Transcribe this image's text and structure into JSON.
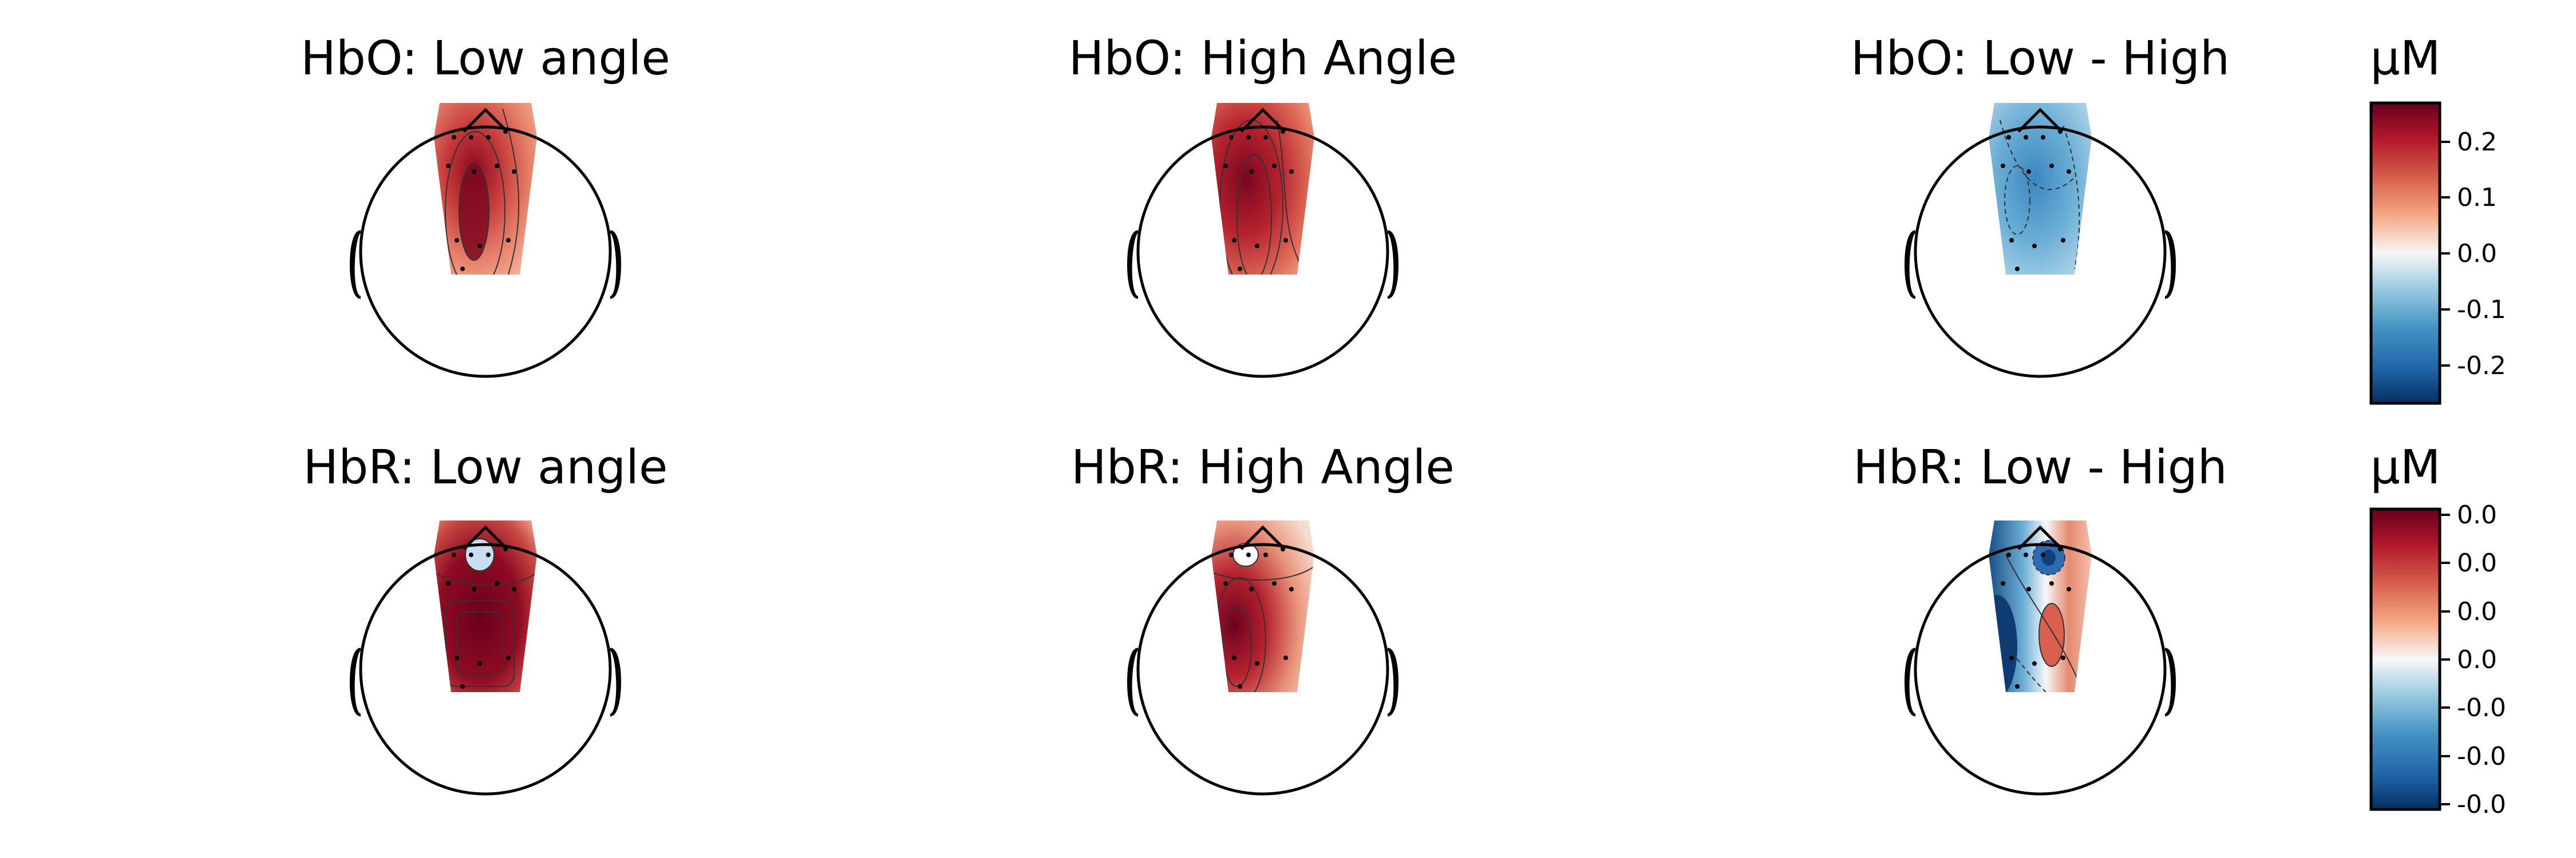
{
  "panels": [
    {
      "id": "hbo-low",
      "title": "HbO: Low angle"
    },
    {
      "id": "hbo-high",
      "title": "HbO: High Angle"
    },
    {
      "id": "hbo-diff",
      "title": "HbO: Low - High"
    },
    {
      "id": "hbr-low",
      "title": "HbR: Low angle"
    },
    {
      "id": "hbr-high",
      "title": "HbR: High Angle"
    },
    {
      "id": "hbr-diff",
      "title": "HbR: Low - High"
    }
  ],
  "colorbars": [
    {
      "unit": "µM",
      "ticks": [
        "0.2",
        "0.1",
        "0.0",
        "-0.1",
        "-0.2"
      ]
    },
    {
      "unit": "µM",
      "ticks": [
        "0.0",
        "0.0",
        "0.0",
        "0.0",
        "-0.0",
        "-0.0",
        "-0.0"
      ]
    }
  ],
  "colors": {
    "dark_red": "#67001f",
    "red": "#d6604d",
    "light_red": "#f4a582",
    "white": "#f7f7f7",
    "light_blue": "#92c5de",
    "blue": "#4393c3",
    "dark_blue": "#053061"
  }
}
